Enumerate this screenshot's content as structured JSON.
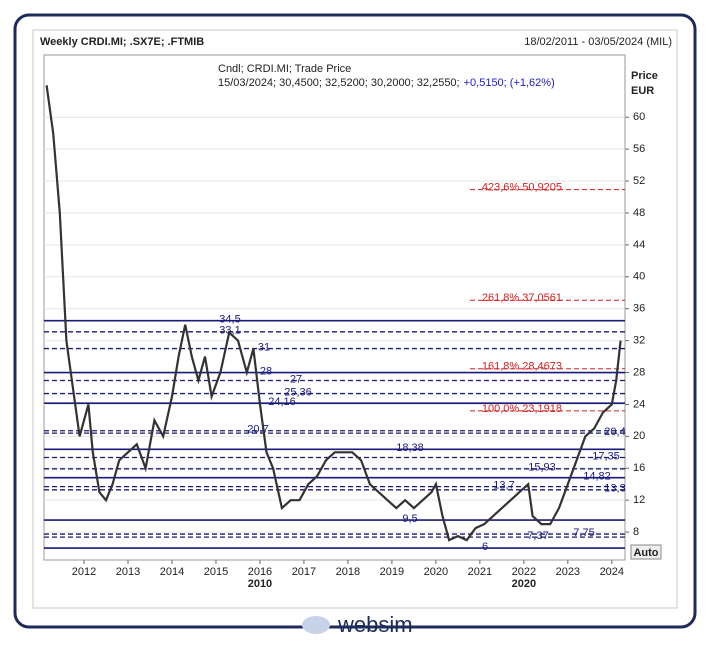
{
  "chart_data": {
    "type": "line",
    "title": "Weekly CRDI.MI; .SX7E; .FTMIB",
    "date_range": "18/02/2011 - 03/05/2024 (MIL)",
    "info_line1": "Cndl; CRDI.MI; Trade Price",
    "info_line2": "15/03/2024; 30,4500; 32,5200; 30,2000; 32,2550;",
    "info_change": "+0,5150; (+1,62%)",
    "y_label": "Price",
    "y_unit": "EUR",
    "scale_button": "Auto",
    "decades": [
      {
        "value": 2016,
        "label": "2010"
      },
      {
        "value": 2022,
        "label": "2020"
      }
    ],
    "brand": "websim",
    "color": "#333333",
    "x": [
      2011.15,
      2011.3,
      2011.45,
      2011.6,
      2011.75,
      2011.9,
      2012.0,
      2012.1,
      2012.2,
      2012.35,
      2012.5,
      2012.65,
      2012.8,
      2013.0,
      2013.2,
      2013.4,
      2013.6,
      2013.8,
      2014.0,
      2014.15,
      2014.3,
      2014.45,
      2014.6,
      2014.75,
      2014.9,
      2015.1,
      2015.3,
      2015.5,
      2015.7,
      2015.85,
      2016.0,
      2016.15,
      2016.3,
      2016.5,
      2016.7,
      2016.9,
      2017.1,
      2017.3,
      2017.5,
      2017.7,
      2017.9,
      2018.1,
      2018.3,
      2018.5,
      2018.7,
      2018.9,
      2019.1,
      2019.3,
      2019.5,
      2019.7,
      2019.9,
      2020.0,
      2020.15,
      2020.3,
      2020.5,
      2020.7,
      2020.9,
      2021.1,
      2021.3,
      2021.5,
      2021.7,
      2021.9,
      2022.1,
      2022.2,
      2022.4,
      2022.6,
      2022.8,
      2023.0,
      2023.2,
      2023.4,
      2023.6,
      2023.8,
      2024.0,
      2024.1,
      2024.2
    ],
    "values": [
      64,
      58,
      48,
      32,
      26,
      20,
      22,
      24,
      18,
      13,
      12,
      14,
      17,
      18,
      19,
      16,
      22,
      20,
      25,
      30,
      34,
      30,
      27,
      30,
      25,
      28,
      33,
      32,
      28,
      31,
      24,
      18,
      16,
      11,
      12,
      12,
      14,
      15,
      17,
      18,
      18,
      18,
      17,
      14,
      13,
      12,
      11,
      12,
      11,
      12,
      13,
      14,
      10,
      7,
      7.5,
      7,
      8.5,
      9,
      10,
      11,
      12,
      13,
      14,
      10,
      9,
      9,
      11,
      14,
      17,
      20,
      21,
      23,
      24,
      27,
      32
    ],
    "xlim": [
      2011.09,
      2024.3
    ],
    "xticks": [
      2012,
      2013,
      2014,
      2015,
      2016,
      2017,
      2018,
      2019,
      2020,
      2021,
      2022,
      2023,
      2024
    ],
    "ylim": [
      4.5,
      67.8
    ],
    "yticks": [
      8,
      12,
      16,
      20,
      24,
      28,
      32,
      36,
      40,
      44,
      48,
      52,
      56,
      60
    ],
    "levels": [
      {
        "value": 34.5,
        "label": "34,5"
      },
      {
        "value": 33.1,
        "label": "33,1"
      },
      {
        "value": 31,
        "label": "31"
      },
      {
        "value": 28,
        "label": "28"
      },
      {
        "value": 27,
        "label": "27"
      },
      {
        "value": 25.36,
        "label": "25,36"
      },
      {
        "value": 24.16,
        "label": "24,16"
      },
      {
        "value": 20.7,
        "label": "20,7"
      },
      {
        "value": 20.4,
        "label": "20,4"
      },
      {
        "value": 18.38,
        "label": "18,38"
      },
      {
        "value": 17.35,
        "label": "17,35"
      },
      {
        "value": 15.93,
        "label": "15,93"
      },
      {
        "value": 14.82,
        "label": "14,82"
      },
      {
        "value": 13.7,
        "label": "13,7"
      },
      {
        "value": 13.3,
        "label": "13,3"
      },
      {
        "value": 9.5,
        "label": "9,5"
      },
      {
        "value": 7.75,
        "label": "7,75"
      },
      {
        "value": 7.37,
        "label": "7,37"
      },
      {
        "value": 6,
        "label": "6"
      }
    ],
    "level_color": "#1a1a7a",
    "fib_levels": [
      {
        "value": 50.9205,
        "label": "423,6% 50,9205"
      },
      {
        "value": 37.0561,
        "label": "261,8% 37,0561"
      },
      {
        "value": 28.4673,
        "label": "161,8% 28,4673"
      },
      {
        "value": 23.1918,
        "label": "100,0% 23,1918"
      }
    ],
    "fib_color": "#d42020"
  }
}
